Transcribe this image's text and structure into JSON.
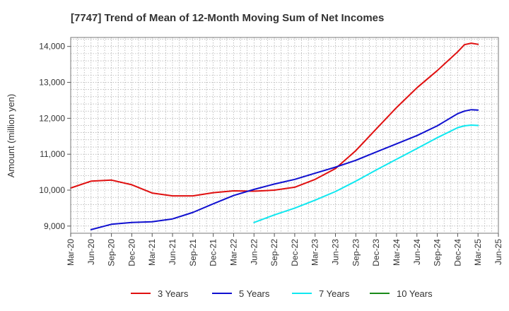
{
  "chart_data": {
    "type": "line",
    "title": "[7747]  Trend of Mean of 12-Month Moving Sum of Net Incomes",
    "ylabel": "Amount (million yen)",
    "xlabel": "",
    "ylim": [
      8800,
      14250
    ],
    "yticks": [
      9000,
      10000,
      11000,
      12000,
      13000,
      14000
    ],
    "ytick_labels": [
      "9,000",
      "10,000",
      "11,000",
      "12,000",
      "13,000",
      "14,000"
    ],
    "x_start": "Mar-20",
    "x_end": "Jun-25",
    "xtick_labels": [
      "Mar-20",
      "Jun-20",
      "Sep-20",
      "Dec-20",
      "Mar-21",
      "Jun-21",
      "Sep-21",
      "Dec-21",
      "Mar-22",
      "Jun-22",
      "Sep-22",
      "Dec-22",
      "Mar-23",
      "Jun-23",
      "Sep-23",
      "Dec-23",
      "Mar-24",
      "Jun-24",
      "Sep-24",
      "Dec-24",
      "Mar-25",
      "Jun-25"
    ],
    "grid": true,
    "legend_position": "bottom",
    "series": [
      {
        "name": "3 Years",
        "color": "#e01010",
        "x": [
          "Mar-20",
          "Jun-20",
          "Sep-20",
          "Dec-20",
          "Mar-21",
          "Jun-21",
          "Sep-21",
          "Dec-21",
          "Mar-22",
          "Jun-22",
          "Sep-22",
          "Dec-22",
          "Mar-23",
          "Jun-23",
          "Sep-23",
          "Dec-23",
          "Mar-24",
          "Jun-24",
          "Sep-24",
          "Dec-24",
          "Jan-25",
          "Feb-25",
          "Mar-25"
        ],
        "values": [
          10060,
          10250,
          10280,
          10150,
          9920,
          9840,
          9840,
          9930,
          9980,
          9970,
          10000,
          10080,
          10300,
          10600,
          11100,
          11700,
          12300,
          12850,
          13330,
          13850,
          14050,
          14090,
          14060
        ]
      },
      {
        "name": "5 Years",
        "color": "#1010d0",
        "x": [
          "Jun-20",
          "Sep-20",
          "Dec-20",
          "Mar-21",
          "Jun-21",
          "Sep-21",
          "Dec-21",
          "Mar-22",
          "Jun-22",
          "Sep-22",
          "Dec-22",
          "Mar-23",
          "Jun-23",
          "Sep-23",
          "Dec-23",
          "Mar-24",
          "Jun-24",
          "Sep-24",
          "Dec-24",
          "Jan-25",
          "Feb-25",
          "Mar-25"
        ],
        "values": [
          8900,
          9050,
          9100,
          9120,
          9200,
          9380,
          9620,
          9850,
          10020,
          10170,
          10300,
          10470,
          10640,
          10830,
          11060,
          11290,
          11520,
          11790,
          12130,
          12200,
          12240,
          12230
        ]
      },
      {
        "name": "7 Years",
        "color": "#10e8f0",
        "x": [
          "Jun-22",
          "Sep-22",
          "Dec-22",
          "Mar-23",
          "Jun-23",
          "Sep-23",
          "Dec-23",
          "Mar-24",
          "Jun-24",
          "Sep-24",
          "Dec-24",
          "Jan-25",
          "Feb-25",
          "Mar-25"
        ],
        "values": [
          9100,
          9310,
          9500,
          9720,
          9960,
          10250,
          10560,
          10860,
          11160,
          11460,
          11740,
          11790,
          11810,
          11800
        ]
      },
      {
        "name": "10 Years",
        "color": "#1a8a1a",
        "x": [],
        "values": []
      }
    ]
  }
}
